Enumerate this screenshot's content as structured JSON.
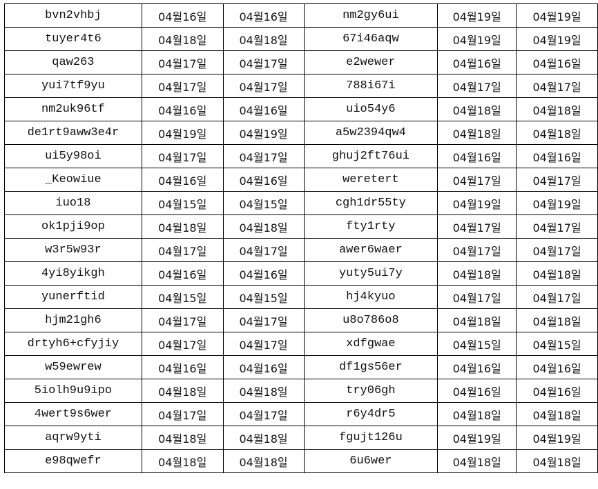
{
  "rows": [
    [
      "bvn2vhbj",
      "04월16일",
      "04월16일",
      "nm2gy6ui",
      "04월19일",
      "04월19일"
    ],
    [
      "tuyer4t6",
      "04월18일",
      "04월18일",
      "67i46aqw",
      "04월19일",
      "04월19일"
    ],
    [
      "qaw263",
      "04월17일",
      "04월17일",
      "e2wewer",
      "04월16일",
      "04월16일"
    ],
    [
      "yui7tf9yu",
      "04월17일",
      "04월17일",
      "788i67i",
      "04월17일",
      "04월17일"
    ],
    [
      "nm2uk96tf",
      "04월16일",
      "04월16일",
      "uio54y6",
      "04월18일",
      "04월18일"
    ],
    [
      "de1rt9aww3e4r",
      "04월19일",
      "04월19일",
      "a5w2394qw4",
      "04월18일",
      "04월18일"
    ],
    [
      "ui5y98oi",
      "04월17일",
      "04월17일",
      "ghuj2ft76ui",
      "04월16일",
      "04월16일"
    ],
    [
      "_Keowiue",
      "04월16일",
      "04월16일",
      "weretert",
      "04월17일",
      "04월17일"
    ],
    [
      "iuo18",
      "04월15일",
      "04월15일",
      "cgh1dr55ty",
      "04월19일",
      "04월19일"
    ],
    [
      "ok1pji9op",
      "04월18일",
      "04월18일",
      "fty1rty",
      "04월17일",
      "04월17일"
    ],
    [
      "w3r5w93r",
      "04월17일",
      "04월17일",
      "awer6waer",
      "04월17일",
      "04월17일"
    ],
    [
      "4yi8yikgh",
      "04월16일",
      "04월16일",
      "yuty5ui7y",
      "04월18일",
      "04월18일"
    ],
    [
      "yunerftid",
      "04월15일",
      "04월15일",
      "hj4kyuo",
      "04월17일",
      "04월17일"
    ],
    [
      "hjm21gh6",
      "04월17일",
      "04월17일",
      "u8o786o8",
      "04월18일",
      "04월18일"
    ],
    [
      "drtyh6+cfyjiy",
      "04월17일",
      "04월17일",
      "xdfgwae",
      "04월15일",
      "04월15일"
    ],
    [
      "w59ewrew",
      "04월16일",
      "04월16일",
      "df1gs56er",
      "04월16일",
      "04월16일"
    ],
    [
      "5iolh9u9ipo",
      "04월18일",
      "04월18일",
      "try06gh",
      "04월16일",
      "04월16일"
    ],
    [
      "4wert9s6wer",
      "04월17일",
      "04월17일",
      "r6y4dr5",
      "04월18일",
      "04월18일"
    ],
    [
      "aqrw9yti",
      "04월18일",
      "04월18일",
      "fgujt126u",
      "04월19일",
      "04월19일"
    ],
    [
      "e98qwefr",
      "04월18일",
      "04월18일",
      "6u6wer",
      "04월18일",
      "04월18일"
    ]
  ]
}
